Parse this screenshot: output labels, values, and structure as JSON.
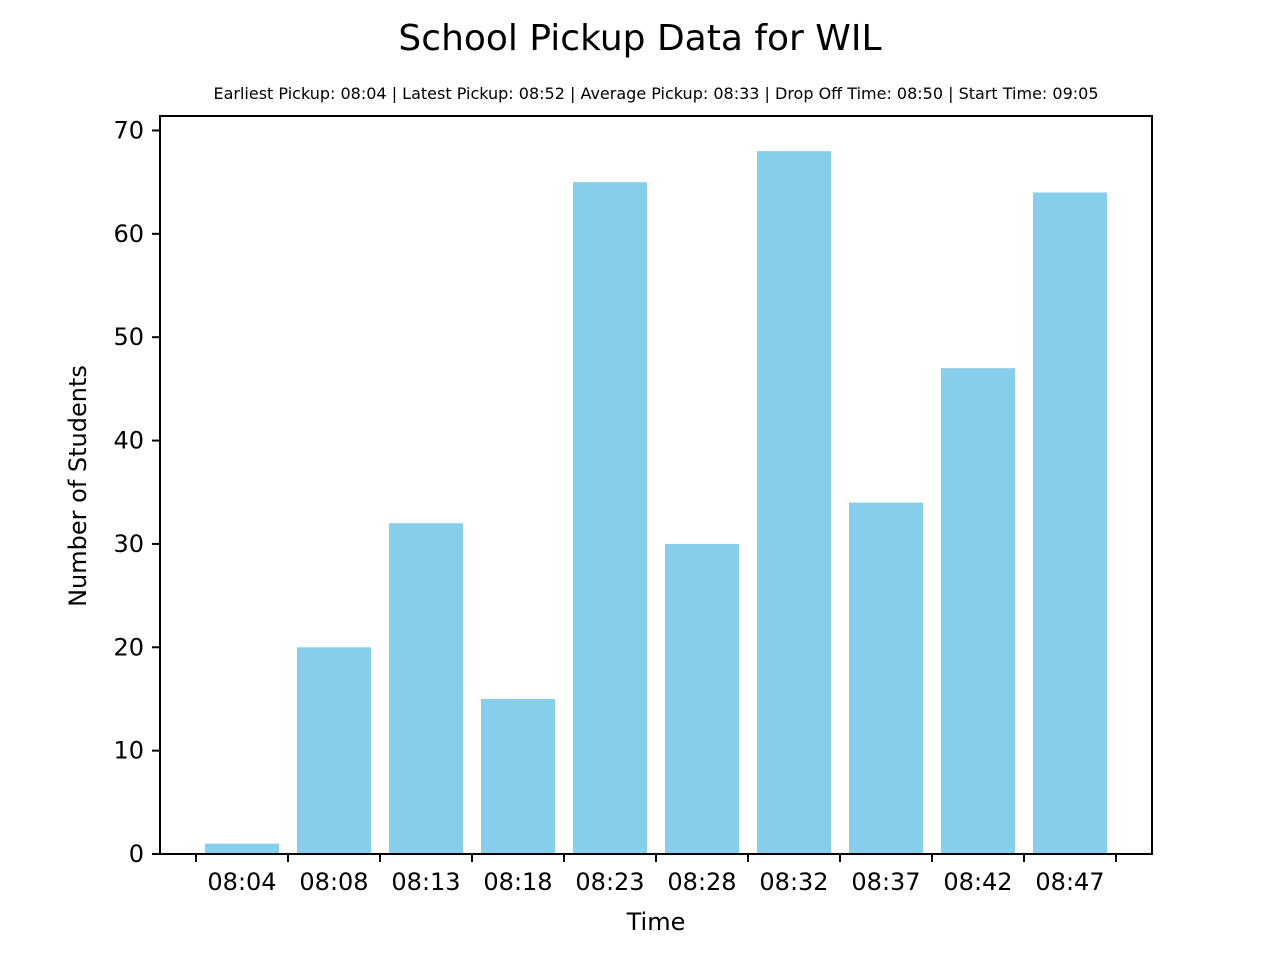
{
  "chart_data": {
    "type": "bar",
    "title": "School Pickup Data for WIL",
    "subtitle": "Earliest Pickup: 08:04 | Latest Pickup: 08:52 | Average Pickup: 08:33 | Drop Off Time: 08:50 | Start Time: 09:05",
    "xlabel": "Time",
    "ylabel": "Number of Students",
    "categories": [
      "08:04",
      "08:08",
      "08:13",
      "08:18",
      "08:23",
      "08:28",
      "08:32",
      "08:37",
      "08:42",
      "08:47"
    ],
    "values": [
      1,
      20,
      32,
      15,
      65,
      30,
      68,
      34,
      47,
      64
    ],
    "ylim": [
      0,
      71.4
    ],
    "yticks": [
      0,
      10,
      20,
      30,
      40,
      50,
      60,
      70
    ],
    "bar_color": "#87CEEB",
    "grid": false,
    "legend": "none"
  }
}
